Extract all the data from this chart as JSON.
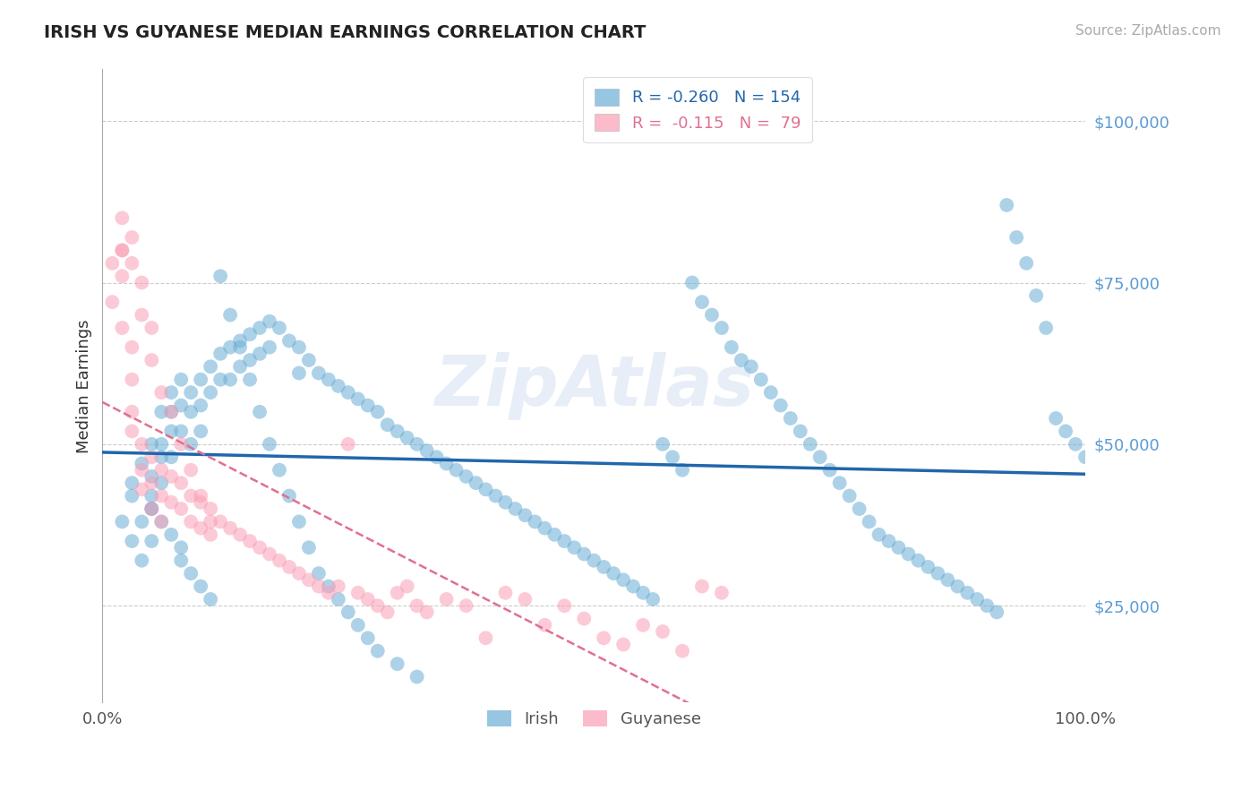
{
  "title": "IRISH VS GUYANESE MEDIAN EARNINGS CORRELATION CHART",
  "source_text": "Source: ZipAtlas.com",
  "ylabel": "Median Earnings",
  "ytick_values": [
    25000,
    50000,
    75000,
    100000
  ],
  "ylim": [
    10000,
    108000
  ],
  "xlim": [
    0.0,
    1.0
  ],
  "legend_r_irish": "-0.260",
  "legend_n_irish": "154",
  "legend_r_guyanese": "-0.115",
  "legend_n_guyanese": "79",
  "blue_color": "#6baed6",
  "pink_color": "#fa9fb5",
  "trend_blue": "#2166ac",
  "trend_pink": "#e07090",
  "watermark": "ZipAtlas",
  "irish_x": [
    0.02,
    0.03,
    0.03,
    0.04,
    0.04,
    0.04,
    0.05,
    0.05,
    0.05,
    0.05,
    0.06,
    0.06,
    0.06,
    0.06,
    0.07,
    0.07,
    0.07,
    0.07,
    0.08,
    0.08,
    0.08,
    0.09,
    0.09,
    0.09,
    0.1,
    0.1,
    0.1,
    0.11,
    0.11,
    0.12,
    0.12,
    0.13,
    0.13,
    0.14,
    0.14,
    0.15,
    0.15,
    0.16,
    0.16,
    0.17,
    0.17,
    0.18,
    0.19,
    0.2,
    0.2,
    0.21,
    0.22,
    0.23,
    0.24,
    0.25,
    0.26,
    0.27,
    0.28,
    0.29,
    0.3,
    0.31,
    0.32,
    0.33,
    0.34,
    0.35,
    0.36,
    0.37,
    0.38,
    0.39,
    0.4,
    0.41,
    0.42,
    0.43,
    0.44,
    0.45,
    0.46,
    0.47,
    0.48,
    0.49,
    0.5,
    0.51,
    0.52,
    0.53,
    0.54,
    0.55,
    0.56,
    0.57,
    0.58,
    0.59,
    0.6,
    0.61,
    0.62,
    0.63,
    0.64,
    0.65,
    0.66,
    0.67,
    0.68,
    0.69,
    0.7,
    0.71,
    0.72,
    0.73,
    0.74,
    0.75,
    0.76,
    0.77,
    0.78,
    0.79,
    0.8,
    0.81,
    0.82,
    0.83,
    0.84,
    0.85,
    0.86,
    0.87,
    0.88,
    0.89,
    0.9,
    0.91,
    0.92,
    0.93,
    0.94,
    0.95,
    0.96,
    0.97,
    0.98,
    0.99,
    1.0,
    0.03,
    0.05,
    0.05,
    0.06,
    0.07,
    0.08,
    0.08,
    0.09,
    0.1,
    0.11,
    0.12,
    0.13,
    0.14,
    0.15,
    0.16,
    0.17,
    0.18,
    0.19,
    0.2,
    0.21,
    0.22,
    0.23,
    0.24,
    0.25,
    0.26,
    0.27,
    0.28,
    0.3,
    0.32
  ],
  "irish_y": [
    38000,
    42000,
    35000,
    47000,
    38000,
    32000,
    50000,
    45000,
    40000,
    35000,
    55000,
    50000,
    48000,
    44000,
    58000,
    55000,
    52000,
    48000,
    60000,
    56000,
    52000,
    58000,
    55000,
    50000,
    60000,
    56000,
    52000,
    62000,
    58000,
    64000,
    60000,
    65000,
    60000,
    66000,
    62000,
    67000,
    63000,
    68000,
    64000,
    69000,
    65000,
    68000,
    66000,
    65000,
    61000,
    63000,
    61000,
    60000,
    59000,
    58000,
    57000,
    56000,
    55000,
    53000,
    52000,
    51000,
    50000,
    49000,
    48000,
    47000,
    46000,
    45000,
    44000,
    43000,
    42000,
    41000,
    40000,
    39000,
    38000,
    37000,
    36000,
    35000,
    34000,
    33000,
    32000,
    31000,
    30000,
    29000,
    28000,
    27000,
    26000,
    50000,
    48000,
    46000,
    75000,
    72000,
    70000,
    68000,
    65000,
    63000,
    62000,
    60000,
    58000,
    56000,
    54000,
    52000,
    50000,
    48000,
    46000,
    44000,
    42000,
    40000,
    38000,
    36000,
    35000,
    34000,
    33000,
    32000,
    31000,
    30000,
    29000,
    28000,
    27000,
    26000,
    25000,
    24000,
    87000,
    82000,
    78000,
    73000,
    68000,
    54000,
    52000,
    50000,
    48000,
    44000,
    42000,
    40000,
    38000,
    36000,
    34000,
    32000,
    30000,
    28000,
    26000,
    76000,
    70000,
    65000,
    60000,
    55000,
    50000,
    46000,
    42000,
    38000,
    34000,
    30000,
    28000,
    26000,
    24000,
    22000,
    20000,
    18000,
    16000,
    14000
  ],
  "guyanese_x": [
    0.01,
    0.01,
    0.02,
    0.02,
    0.02,
    0.03,
    0.03,
    0.03,
    0.03,
    0.04,
    0.04,
    0.04,
    0.05,
    0.05,
    0.05,
    0.06,
    0.06,
    0.06,
    0.07,
    0.07,
    0.08,
    0.08,
    0.09,
    0.09,
    0.1,
    0.1,
    0.11,
    0.11,
    0.12,
    0.13,
    0.14,
    0.15,
    0.16,
    0.17,
    0.18,
    0.19,
    0.2,
    0.21,
    0.22,
    0.23,
    0.24,
    0.25,
    0.26,
    0.27,
    0.28,
    0.29,
    0.3,
    0.31,
    0.32,
    0.33,
    0.35,
    0.37,
    0.39,
    0.41,
    0.43,
    0.45,
    0.47,
    0.49,
    0.51,
    0.53,
    0.55,
    0.57,
    0.59,
    0.61,
    0.63,
    0.02,
    0.02,
    0.03,
    0.03,
    0.04,
    0.04,
    0.05,
    0.05,
    0.06,
    0.07,
    0.08,
    0.09,
    0.1,
    0.11
  ],
  "guyanese_y": [
    78000,
    72000,
    80000,
    76000,
    68000,
    65000,
    60000,
    55000,
    52000,
    50000,
    46000,
    43000,
    48000,
    44000,
    40000,
    46000,
    42000,
    38000,
    45000,
    41000,
    44000,
    40000,
    42000,
    38000,
    41000,
    37000,
    40000,
    36000,
    38000,
    37000,
    36000,
    35000,
    34000,
    33000,
    32000,
    31000,
    30000,
    29000,
    28000,
    27000,
    28000,
    50000,
    27000,
    26000,
    25000,
    24000,
    27000,
    28000,
    25000,
    24000,
    26000,
    25000,
    20000,
    27000,
    26000,
    22000,
    25000,
    23000,
    20000,
    19000,
    22000,
    21000,
    18000,
    28000,
    27000,
    85000,
    80000,
    82000,
    78000,
    75000,
    70000,
    68000,
    63000,
    58000,
    55000,
    50000,
    46000,
    42000,
    38000
  ]
}
